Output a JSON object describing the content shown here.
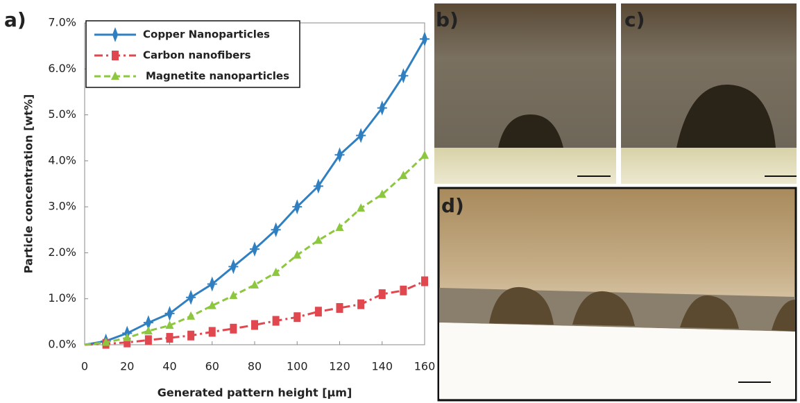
{
  "chart_data": {
    "type": "line",
    "panel_labels": [
      "a)",
      "b)",
      "c)",
      "d)"
    ],
    "xlabel": "Generated pattern height [µm]",
    "ylabel": "Particle concentration [wt%]",
    "x": [
      0,
      10,
      20,
      30,
      40,
      50,
      60,
      70,
      80,
      90,
      100,
      110,
      120,
      130,
      140,
      150,
      160
    ],
    "series": [
      {
        "name": "Copper Nanoparticles",
        "color": "#2f7fc1",
        "marker": "diamond",
        "dash": "solid",
        "values": [
          0,
          0.08,
          0.25,
          0.48,
          0.68,
          1.03,
          1.32,
          1.7,
          2.08,
          2.5,
          3.0,
          3.45,
          4.13,
          4.55,
          5.15,
          5.85,
          6.65
        ]
      },
      {
        "name": "Carbon nanofibers",
        "color": "#e0474f",
        "marker": "square",
        "dash": "dashdot",
        "values": [
          0,
          0.02,
          0.05,
          0.1,
          0.15,
          0.2,
          0.28,
          0.35,
          0.43,
          0.52,
          0.6,
          0.72,
          0.8,
          0.88,
          1.1,
          1.18,
          1.38
        ]
      },
      {
        "name": "Magnetite nanoparticles",
        "color": "#8dc63f",
        "marker": "triangle",
        "dash": "dashed",
        "values": [
          0,
          0.05,
          0.15,
          0.3,
          0.42,
          0.62,
          0.85,
          1.07,
          1.3,
          1.57,
          1.95,
          2.27,
          2.55,
          2.97,
          3.27,
          3.68,
          4.12
        ]
      }
    ],
    "xlim": [
      0,
      160
    ],
    "xticks": [
      0,
      20,
      40,
      60,
      80,
      100,
      120,
      140,
      160
    ],
    "ylim": [
      0,
      7
    ],
    "yticks": [
      {
        "value": 0,
        "label": "0.0%"
      },
      {
        "value": 1,
        "label": "1.0%"
      },
      {
        "value": 2,
        "label": "2.0%"
      },
      {
        "value": 3,
        "label": "3.0%"
      },
      {
        "value": 4,
        "label": "4.0%"
      },
      {
        "value": 5,
        "label": "5.0%"
      },
      {
        "value": 6,
        "label": "6.0%"
      },
      {
        "value": 7,
        "label": "7.0%"
      }
    ],
    "grid": false,
    "legend": "upper left"
  }
}
